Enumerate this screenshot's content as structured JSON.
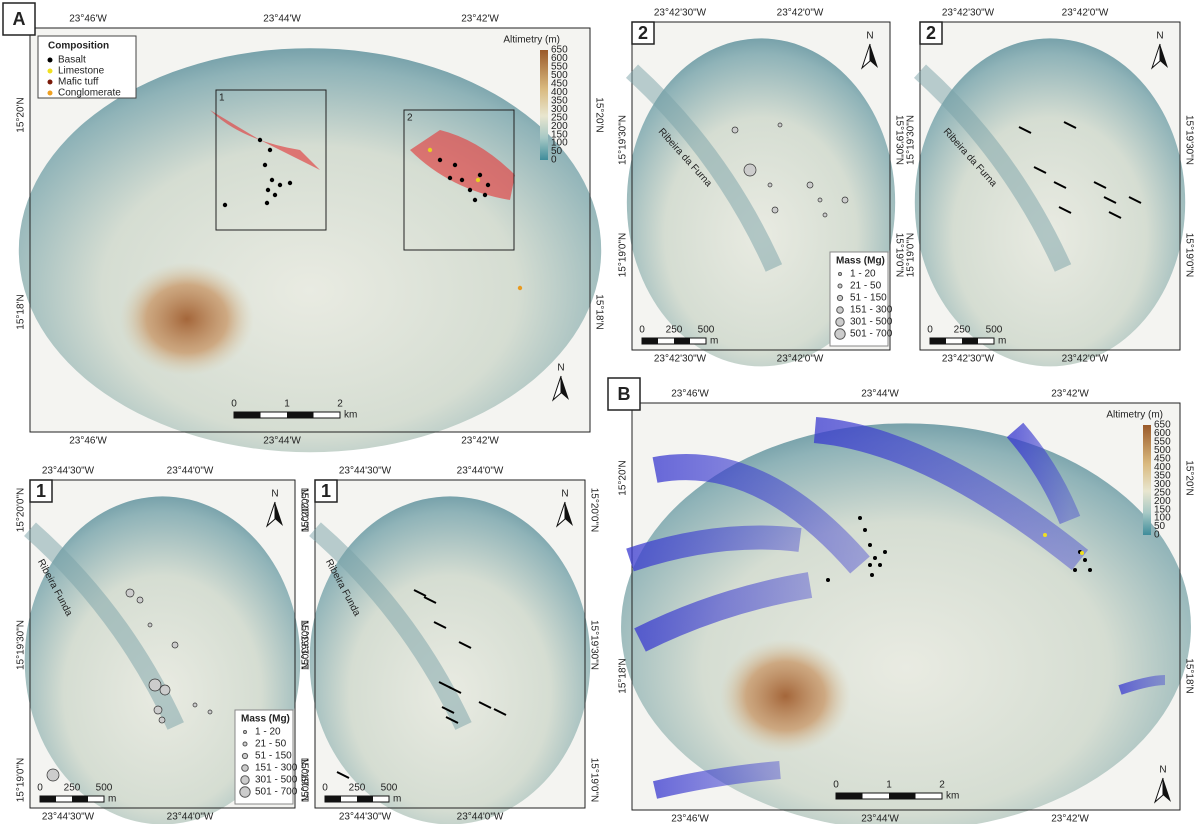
{
  "panel_a": {
    "label": "A",
    "lon_labels": [
      "23°46'W",
      "23°44'W",
      "23°42'W"
    ],
    "lat_labels": [
      "15°20'N",
      "15°18'N"
    ],
    "legend": {
      "title": "Composition",
      "items": [
        "Basalt",
        "Limestone",
        "Mafic tuff",
        "Conglomerate"
      ]
    },
    "altimetry": {
      "title": "Altimetry (m)",
      "ticks": [
        "650",
        "600",
        "550",
        "500",
        "450",
        "400",
        "350",
        "300",
        "250",
        "200",
        "150",
        "100",
        "50",
        "0"
      ]
    },
    "scale": {
      "ticks": [
        "0",
        "1",
        "2"
      ],
      "unit": "km"
    },
    "north": "N",
    "insets": [
      "1",
      "2"
    ]
  },
  "panel_b": {
    "label": "B",
    "lon_labels": [
      "23°46'W",
      "23°44'W",
      "23°42'W"
    ],
    "lat_labels": [
      "15°20'N",
      "15°18'N"
    ],
    "altimetry": {
      "title": "Altimetry (m)",
      "ticks": [
        "650",
        "600",
        "550",
        "500",
        "450",
        "400",
        "350",
        "300",
        "250",
        "200",
        "150",
        "100",
        "50",
        "0"
      ]
    },
    "scale": {
      "ticks": [
        "0",
        "1",
        "2"
      ],
      "unit": "km"
    },
    "north": "N"
  },
  "detail_2": [
    {
      "label": "2",
      "lon_labels": [
        "23°42'30\"W",
        "23°42'0\"W"
      ],
      "lat_labels": [
        "15°19'30\"N",
        "15°19'0\"N"
      ],
      "stream": "Ribeira da Furna",
      "north": "N",
      "scale": {
        "ticks": [
          "0",
          "250",
          "500"
        ],
        "unit": "m"
      },
      "mass_legend": {
        "title": "Mass (Mg)",
        "items": [
          "1 - 20",
          "21 - 50",
          "51 - 150",
          "151 - 300",
          "301 - 500",
          "501 - 700"
        ]
      }
    },
    {
      "label": "2",
      "lon_labels": [
        "23°42'30\"W",
        "23°42'0\"W"
      ],
      "lat_labels": [
        "15°19'30\"N",
        "15°19'0\"N"
      ],
      "stream": "Ribeira da Furna",
      "north": "N",
      "scale": {
        "ticks": [
          "0",
          "250",
          "500"
        ],
        "unit": "m"
      }
    }
  ],
  "detail_1": [
    {
      "label": "1",
      "lon_labels": [
        "23°44'30\"W",
        "23°44'0\"W"
      ],
      "lat_labels": [
        "15°20'0\"N",
        "15°19'30\"N",
        "15°19'0\"N"
      ],
      "stream": "Ribeira Funda",
      "north": "N",
      "scale": {
        "ticks": [
          "0",
          "250",
          "500"
        ],
        "unit": "m"
      },
      "mass_legend": {
        "title": "Mass (Mg)",
        "items": [
          "1 - 20",
          "21 - 50",
          "51 - 150",
          "151 - 300",
          "301 - 500",
          "501 - 700"
        ]
      }
    },
    {
      "label": "1",
      "lon_labels": [
        "23°44'30\"W",
        "23°44'0\"W"
      ],
      "lat_labels": [
        "15°20'0\"N",
        "15°19'30\"N",
        "15°19'0\"N"
      ],
      "stream": "Ribeira Funda",
      "north": "N",
      "scale": {
        "ticks": [
          "0",
          "250",
          "500"
        ],
        "unit": "m"
      }
    }
  ]
}
